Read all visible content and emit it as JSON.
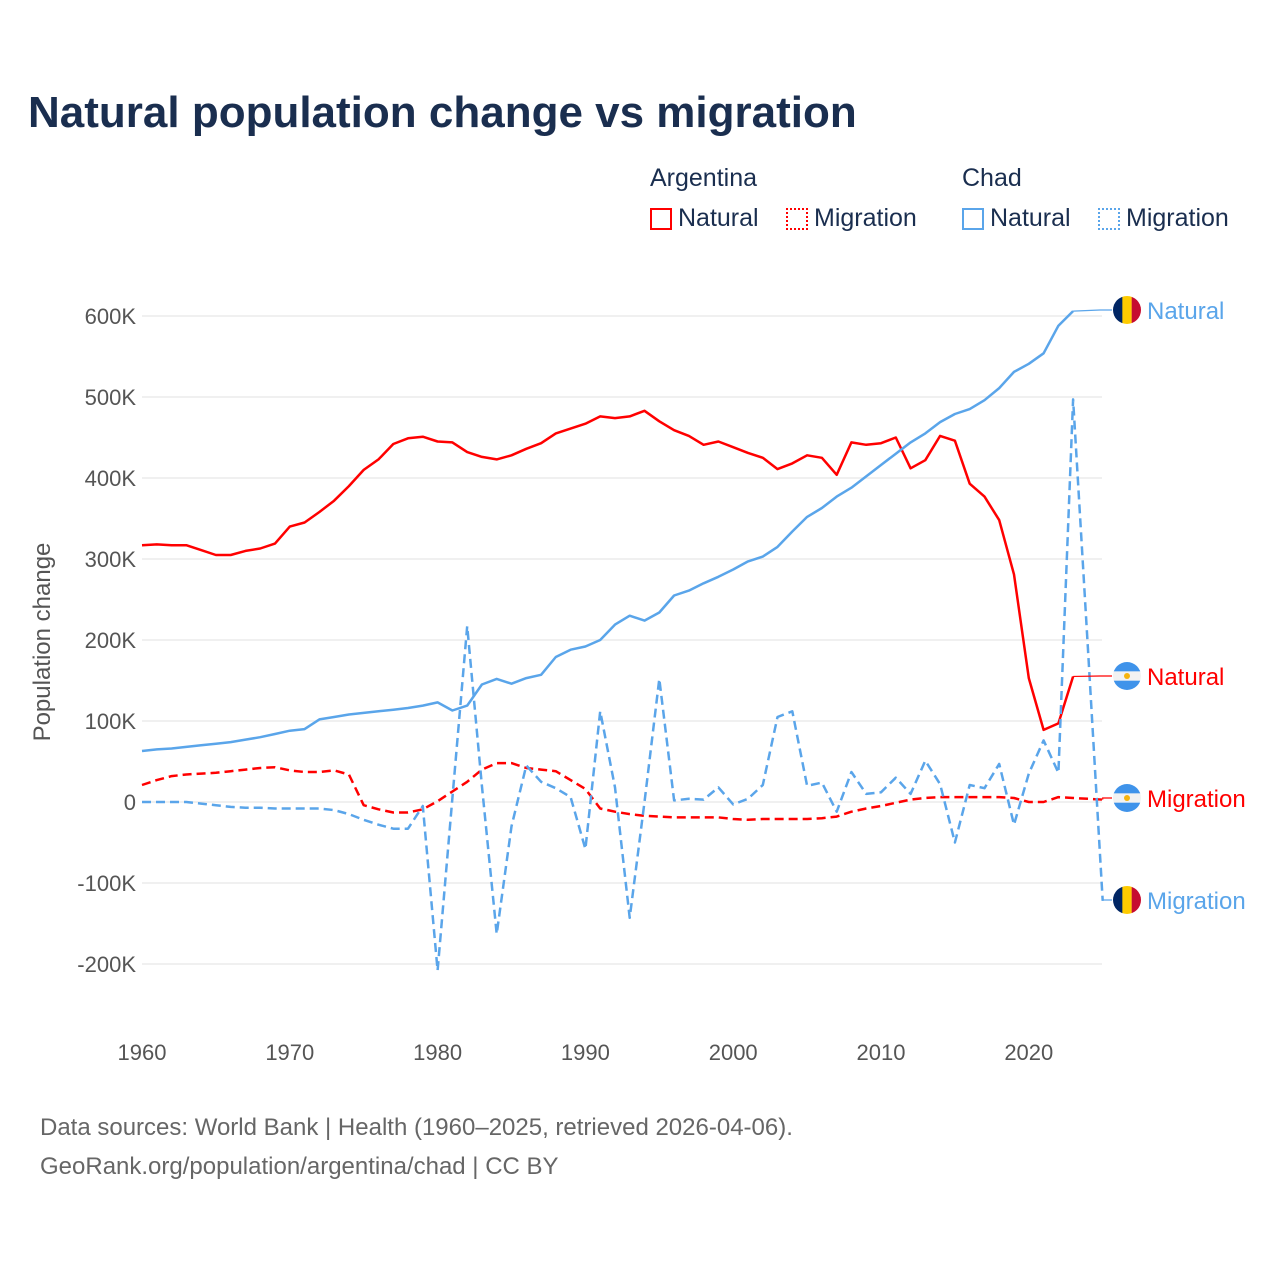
{
  "title": "Natural population change vs migration",
  "legend": {
    "groups": [
      {
        "name": "Argentina",
        "items": [
          {
            "label": "Natural",
            "style": "solid"
          },
          {
            "label": "Migration",
            "style": "dotted"
          }
        ]
      },
      {
        "name": "Chad",
        "items": [
          {
            "label": "Natural",
            "style": "solid"
          },
          {
            "label": "Migration",
            "style": "dotted"
          }
        ]
      }
    ]
  },
  "colors": {
    "argentina": "#ff0000",
    "chad": "#5aa5ea",
    "grid": "#ebebeb"
  },
  "footer": {
    "line1": "Data sources: World Bank | Health (1960–2025, retrieved 2026-04-06).",
    "line2": "GeoRank.org/population/argentina/chad | CC BY"
  },
  "end_labels": {
    "chad_natural": "Natural",
    "arg_natural": "Natural",
    "arg_migration": "Migration",
    "chad_migration": "Migration"
  },
  "chart_data": {
    "type": "line",
    "title": "Natural population change vs migration",
    "ylabel": "Population change",
    "xlabel": "",
    "xlim": [
      1960,
      2025
    ],
    "ylim": [
      -250,
      650
    ],
    "y_unit": "thousands",
    "grid": true,
    "legend_position": "top-right",
    "x_ticks": [
      1960,
      1970,
      1980,
      1990,
      2000,
      2010,
      2020
    ],
    "x_tick_labels": [
      "1960",
      "1970",
      "1980",
      "1990",
      "2000",
      "2010",
      "2020"
    ],
    "y_ticks": [
      -200,
      -100,
      0,
      100,
      200,
      300,
      400,
      500,
      600
    ],
    "y_tick_labels": [
      "-200K",
      "-100K",
      "0",
      "100K",
      "200K",
      "300K",
      "400K",
      "500K",
      "600K"
    ],
    "start_year": 1960,
    "series": [
      {
        "name": "Argentina Natural",
        "country": "argentina",
        "dash": false,
        "values": [
          317,
          318,
          317,
          317,
          311,
          305,
          305,
          310,
          313,
          319,
          340,
          345,
          358,
          372,
          390,
          410,
          423,
          442,
          449,
          451,
          445,
          444,
          432,
          426,
          423,
          428,
          436,
          443,
          455,
          461,
          467,
          476,
          474,
          476,
          483,
          470,
          459,
          452,
          441,
          445,
          438,
          431,
          425,
          411,
          418,
          428,
          425,
          404,
          444,
          441,
          443,
          450,
          412,
          422,
          452,
          446,
          393,
          377,
          348,
          281,
          153,
          89,
          97,
          155
        ]
      },
      {
        "name": "Argentina Migration",
        "country": "argentina",
        "dash": true,
        "values": [
          21,
          27,
          32,
          34,
          35,
          36,
          38,
          40,
          42,
          43,
          39,
          37,
          37,
          39,
          34,
          -4,
          -9,
          -13,
          -13,
          -9,
          1,
          13,
          25,
          40,
          48,
          48,
          42,
          40,
          38,
          27,
          16,
          -8,
          -12,
          -15,
          -17,
          -18,
          -19,
          -19,
          -19,
          -19,
          -21,
          -22,
          -21,
          -21,
          -21,
          -21,
          -20,
          -18,
          -12,
          -8,
          -5,
          -1,
          3,
          5,
          6,
          6,
          6,
          6,
          6,
          5,
          0,
          0,
          6,
          5,
          4,
          3
        ]
      },
      {
        "name": "Chad Natural",
        "country": "chad",
        "dash": false,
        "values": [
          63,
          65,
          66,
          68,
          70,
          72,
          74,
          77,
          80,
          84,
          88,
          90,
          102,
          105,
          108,
          110,
          112,
          114,
          116,
          119,
          123,
          113,
          119,
          145,
          152,
          146,
          153,
          157,
          179,
          188,
          192,
          200,
          219,
          230,
          224,
          234,
          255,
          261,
          270,
          278,
          287,
          297,
          303,
          315,
          334,
          352,
          363,
          377,
          388,
          402,
          416,
          430,
          444,
          455,
          469,
          479,
          485,
          496,
          511,
          531,
          541,
          554,
          588,
          606
        ]
      },
      {
        "name": "Chad Migration",
        "country": "chad",
        "dash": true,
        "values": [
          0,
          0,
          0,
          0,
          -2,
          -4,
          -6,
          -7,
          -7,
          -8,
          -8,
          -8,
          -8,
          -10,
          -15,
          -22,
          -28,
          -33,
          -33,
          -5,
          -208,
          5,
          217,
          20,
          -163,
          -30,
          45,
          25,
          17,
          6,
          -58,
          112,
          18,
          -143,
          0,
          152,
          2,
          4,
          3,
          18,
          -3,
          4,
          21,
          105,
          112,
          20,
          24,
          -12,
          37,
          10,
          12,
          30,
          10,
          51,
          22,
          -50,
          21,
          17,
          47,
          -28,
          35,
          76,
          36,
          497,
          190,
          -122
        ]
      }
    ]
  }
}
